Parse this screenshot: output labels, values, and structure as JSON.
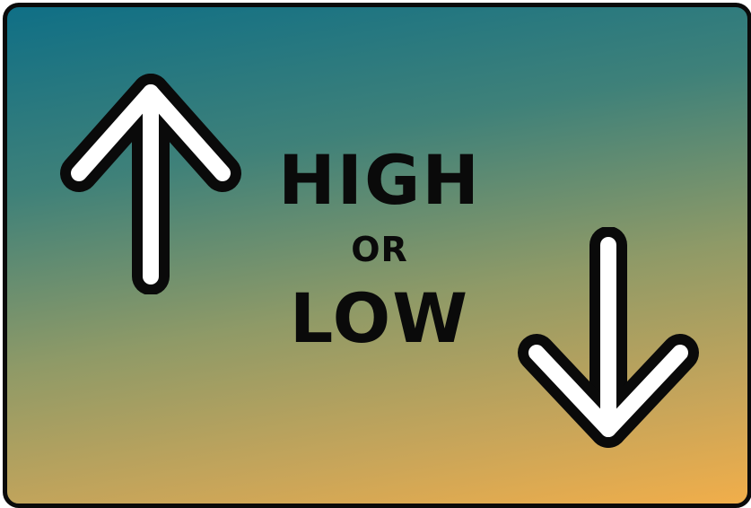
{
  "game": {
    "title_top": "HIGH",
    "title_middle": "OR",
    "title_bottom": "LOW"
  },
  "icons": {
    "up": "arrow-up-icon",
    "down": "arrow-down-icon"
  },
  "colors": {
    "gradient_top": "#0f6f86",
    "gradient_bottom": "#f1ae4a",
    "outline": "#0a0a0a",
    "arrow_fill": "#ffffff"
  }
}
